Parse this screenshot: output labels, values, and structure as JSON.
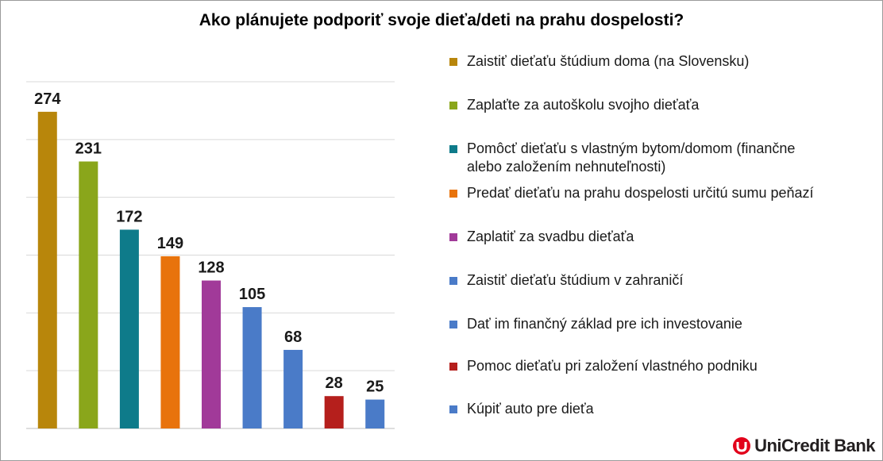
{
  "chart_data": {
    "type": "bar",
    "title": "Ako plánujete podporiť svoje dieťa/deti na prahu dospelosti?",
    "xlabel": "",
    "ylabel": "",
    "ylim": [
      0,
      300
    ],
    "grid": true,
    "legend_position": "right",
    "categories": [
      "Zaistiť dieťaťu štúdium doma (na Slovensku)",
      "Zaplaťte za autoškolu svojho dieťaťa",
      "Pomôcť dieťaťu s vlastným bytom/domom (finančne alebo založením nehnuteľnosti)",
      "Predať dieťaťu na prahu dospelosti určitú sumu peňazí",
      "Zaplatiť za svadbu dieťaťa",
      "Zaistiť dieťaťu štúdium v zahraničí",
      "Dať im finančný základ pre ich investovanie",
      "Pomoc dieťaťu pri založení vlastného podniku",
      "Kúpiť auto pre dieťa"
    ],
    "values": [
      274,
      231,
      172,
      149,
      128,
      105,
      68,
      28,
      25
    ],
    "colors": [
      "#b8860b",
      "#8aa61b",
      "#0e7b8a",
      "#e8730c",
      "#a13a99",
      "#4a7bc8",
      "#4a7bc8",
      "#b51f1c",
      "#4a7bc8"
    ]
  },
  "brand": {
    "logo_text": "UniCredit Bank",
    "logo_color": "#e2001a"
  }
}
